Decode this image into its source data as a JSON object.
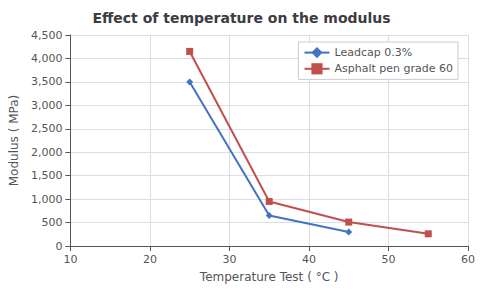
{
  "chart_data": {
    "type": "line",
    "title": "Effect of temperature on the modulus",
    "xlabel": "Temperature Test ( °C )",
    "ylabel": "Modulus ( MPa)",
    "xlim": [
      10,
      60
    ],
    "ylim": [
      0,
      4500
    ],
    "xticks": [
      10,
      20,
      30,
      40,
      50,
      60
    ],
    "yticks": [
      0,
      500,
      1000,
      1500,
      2000,
      2500,
      3000,
      3500,
      4000,
      4500
    ],
    "series": [
      {
        "name": "Leadcap 0.3%",
        "x": [
          25,
          35,
          45
        ],
        "values": [
          3500,
          650,
          300
        ],
        "color": "#4472C4",
        "marker": "diamond"
      },
      {
        "name": "Asphalt pen grade 60",
        "x": [
          25,
          35,
          45,
          55
        ],
        "values": [
          4150,
          950,
          510,
          260
        ],
        "color": "#C0504D",
        "marker": "square"
      }
    ],
    "grid": true,
    "legend": "upper right"
  }
}
